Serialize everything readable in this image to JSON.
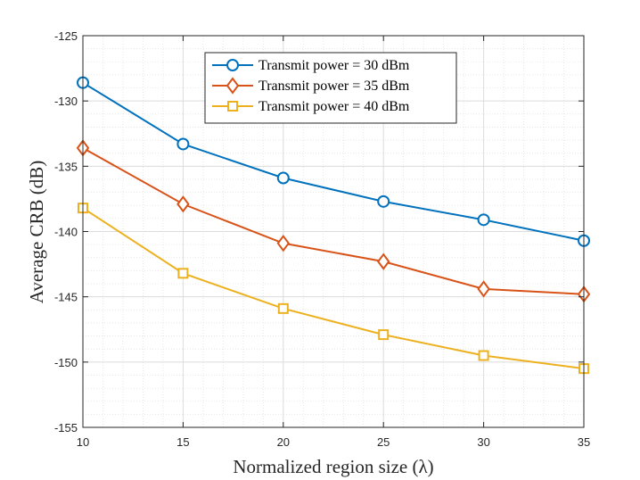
{
  "chart_data": {
    "type": "line",
    "title": "",
    "xlabel": "Normalized region size (λ)",
    "ylabel": "Average CRB (dB)",
    "x": [
      10,
      15,
      20,
      25,
      30,
      35
    ],
    "xlim": [
      10,
      35
    ],
    "ylim": [
      -155,
      -125
    ],
    "xticks": [
      "10",
      "15",
      "20",
      "25",
      "30",
      "35"
    ],
    "yticks": [
      "-125",
      "-130",
      "-135",
      "-140",
      "-145",
      "-150",
      "-155"
    ],
    "grid": true,
    "minor_grid": true,
    "legend_position": "top-center",
    "series": [
      {
        "name": "Transmit power = 30 dBm",
        "marker": "circle",
        "color": "#0072BD",
        "values": [
          -128.6,
          -133.3,
          -135.9,
          -137.7,
          -139.1,
          -140.7
        ]
      },
      {
        "name": "Transmit power = 35 dBm",
        "marker": "diamond",
        "color": "#D95319",
        "values": [
          -133.6,
          -137.9,
          -140.9,
          -142.3,
          -144.4,
          -144.8
        ]
      },
      {
        "name": "Transmit power = 40 dBm",
        "marker": "square",
        "color": "#EDB120",
        "values": [
          -138.2,
          -143.2,
          -145.9,
          -147.9,
          -149.5,
          -150.5
        ]
      }
    ]
  }
}
